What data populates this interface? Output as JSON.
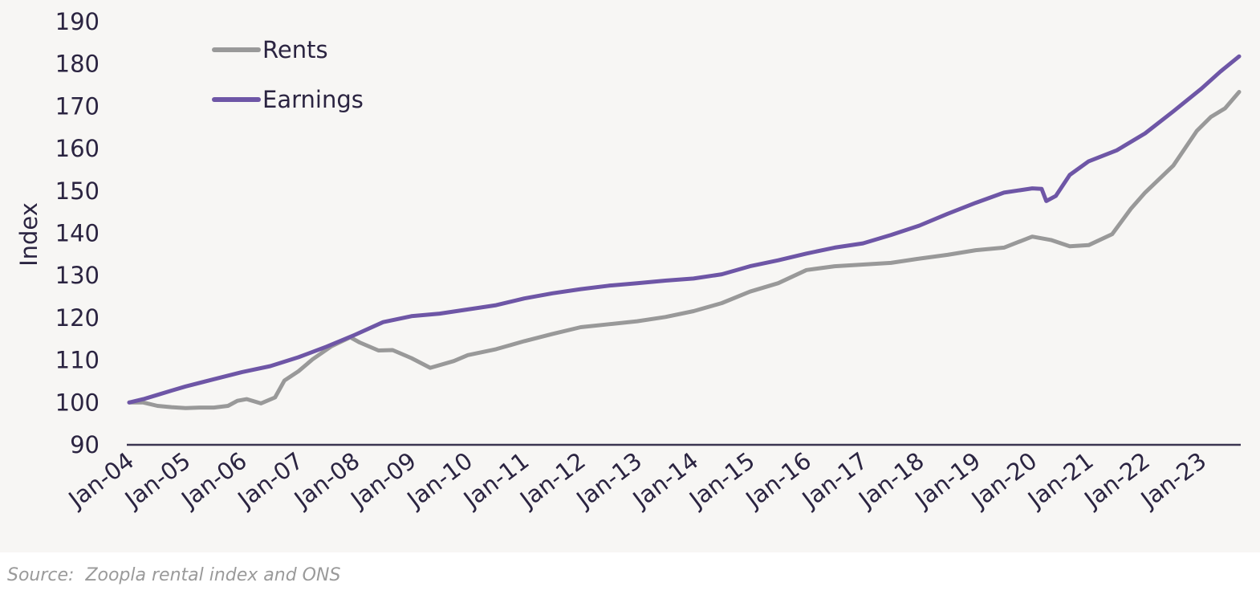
{
  "source_note": "Source:  Zoopla rental index and ONS",
  "colors": {
    "background": "#f7f6f4",
    "axis": "#3b3551",
    "text": "#2b2441",
    "rents": "#999999",
    "earnings": "#6e56a6",
    "source": "#9a9a9a"
  },
  "chart_data": {
    "type": "line",
    "ylabel": "Index",
    "xlabel": "",
    "ylim": [
      90,
      190
    ],
    "yticks": [
      90,
      100,
      110,
      120,
      130,
      140,
      150,
      160,
      170,
      180,
      190
    ],
    "xticks": [
      "Jan-04",
      "Jan-05",
      "Jan-06",
      "Jan-07",
      "Jan-08",
      "Jan-09",
      "Jan-10",
      "Jan-11",
      "Jan-12",
      "Jan-13",
      "Jan-14",
      "Jan-15",
      "Jan-16",
      "Jan-17",
      "Jan-18",
      "Jan-19",
      "Jan-20",
      "Jan-21",
      "Jan-22",
      "Jan-23"
    ],
    "grid": false,
    "legend": "top-left",
    "series": [
      {
        "name": "Rents",
        "color": "#999999",
        "points": [
          [
            "2004-01",
            100
          ],
          [
            "2004-04",
            100
          ],
          [
            "2004-07",
            99.2
          ],
          [
            "2004-10",
            98.9
          ],
          [
            "2005-01",
            98.7
          ],
          [
            "2005-04",
            98.8
          ],
          [
            "2005-07",
            98.8
          ],
          [
            "2005-10",
            99.2
          ],
          [
            "2005-12",
            100.4
          ],
          [
            "2006-02",
            100.8
          ],
          [
            "2006-05",
            99.8
          ],
          [
            "2006-08",
            101.2
          ],
          [
            "2006-10",
            105.2
          ],
          [
            "2007-01",
            107.4
          ],
          [
            "2007-04",
            110.2
          ],
          [
            "2007-08",
            113.3
          ],
          [
            "2007-12",
            115.4
          ],
          [
            "2008-02",
            114.2
          ],
          [
            "2008-06",
            112.3
          ],
          [
            "2008-09",
            112.4
          ],
          [
            "2009-01",
            110.5
          ],
          [
            "2009-05",
            108.2
          ],
          [
            "2009-10",
            109.8
          ],
          [
            "2010-01",
            111.2
          ],
          [
            "2010-07",
            112.6
          ],
          [
            "2011-01",
            114.5
          ],
          [
            "2011-07",
            116.2
          ],
          [
            "2012-01",
            117.8
          ],
          [
            "2012-07",
            118.5
          ],
          [
            "2013-01",
            119.2
          ],
          [
            "2013-07",
            120.2
          ],
          [
            "2014-01",
            121.6
          ],
          [
            "2014-07",
            123.5
          ],
          [
            "2015-01",
            126.2
          ],
          [
            "2015-07",
            128.2
          ],
          [
            "2016-01",
            131.3
          ],
          [
            "2016-07",
            132.2
          ],
          [
            "2017-01",
            132.6
          ],
          [
            "2017-07",
            133.0
          ],
          [
            "2018-01",
            134.0
          ],
          [
            "2018-07",
            134.9
          ],
          [
            "2019-01",
            136.0
          ],
          [
            "2019-07",
            136.6
          ],
          [
            "2020-01",
            139.2
          ],
          [
            "2020-05",
            138.4
          ],
          [
            "2020-09",
            136.9
          ],
          [
            "2021-01",
            137.2
          ],
          [
            "2021-06",
            139.8
          ],
          [
            "2021-10",
            145.8
          ],
          [
            "2022-01",
            149.6
          ],
          [
            "2022-07",
            156.0
          ],
          [
            "2022-12",
            164.2
          ],
          [
            "2023-03",
            167.5
          ],
          [
            "2023-06",
            169.5
          ],
          [
            "2023-09",
            173.4
          ]
        ]
      },
      {
        "name": "Earnings",
        "color": "#6e56a6",
        "points": [
          [
            "2004-01",
            100
          ],
          [
            "2004-04",
            100.8
          ],
          [
            "2004-07",
            101.8
          ],
          [
            "2004-10",
            102.8
          ],
          [
            "2005-01",
            103.8
          ],
          [
            "2005-07",
            105.5
          ],
          [
            "2006-01",
            107.2
          ],
          [
            "2006-07",
            108.6
          ],
          [
            "2007-01",
            110.7
          ],
          [
            "2007-07",
            113.2
          ],
          [
            "2008-01",
            116.0
          ],
          [
            "2008-07",
            119.0
          ],
          [
            "2009-01",
            120.4
          ],
          [
            "2009-07",
            121.0
          ],
          [
            "2010-01",
            122.0
          ],
          [
            "2010-07",
            123.0
          ],
          [
            "2011-01",
            124.6
          ],
          [
            "2011-07",
            125.8
          ],
          [
            "2012-01",
            126.8
          ],
          [
            "2012-07",
            127.6
          ],
          [
            "2013-01",
            128.2
          ],
          [
            "2013-07",
            128.8
          ],
          [
            "2014-01",
            129.3
          ],
          [
            "2014-07",
            130.3
          ],
          [
            "2015-01",
            132.2
          ],
          [
            "2015-07",
            133.6
          ],
          [
            "2016-01",
            135.2
          ],
          [
            "2016-07",
            136.6
          ],
          [
            "2017-01",
            137.6
          ],
          [
            "2017-07",
            139.6
          ],
          [
            "2018-01",
            141.8
          ],
          [
            "2018-07",
            144.6
          ],
          [
            "2019-01",
            147.2
          ],
          [
            "2019-07",
            149.6
          ],
          [
            "2020-01",
            150.6
          ],
          [
            "2020-03",
            150.5
          ],
          [
            "2020-04",
            147.6
          ],
          [
            "2020-06",
            148.8
          ],
          [
            "2020-09",
            153.8
          ],
          [
            "2021-01",
            157.0
          ],
          [
            "2021-07",
            159.6
          ],
          [
            "2022-01",
            163.6
          ],
          [
            "2022-07",
            168.8
          ],
          [
            "2023-01",
            174.2
          ],
          [
            "2023-05",
            178.2
          ],
          [
            "2023-07",
            180.0
          ],
          [
            "2023-09",
            181.8
          ]
        ]
      }
    ]
  }
}
